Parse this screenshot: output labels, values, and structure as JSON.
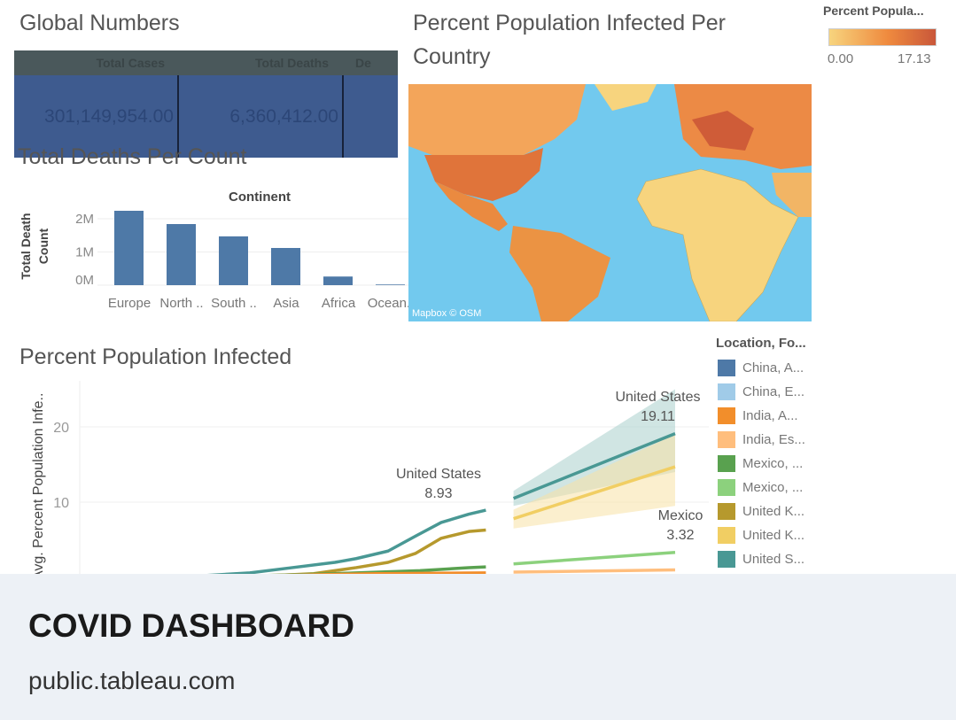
{
  "global_numbers": {
    "title": "Global Numbers",
    "columns": [
      "Total Cases",
      "Total Deaths",
      "De"
    ],
    "values": [
      "301,149,954.00",
      "6,360,412.00",
      ""
    ]
  },
  "deaths_chart": {
    "title": "Total Deaths Per Count"
  },
  "map": {
    "title_line1": "Percent Population Infected Per",
    "title_line2": "Country",
    "attribution": "Mapbox © OSM",
    "legend_title": "Percent Popula...",
    "legend_min": "0.00",
    "legend_max": "17.13",
    "colors": {
      "ocean": "#72c9ee",
      "low": "#f7d47e",
      "mid": "#ef8a3e",
      "high": "#c9573a"
    }
  },
  "infected_chart": {
    "title": "Percent Population Infected",
    "legend_title": "Location, Fo...",
    "legend": [
      {
        "label": "China, A...",
        "color": "#4e79a7"
      },
      {
        "label": "China, E...",
        "color": "#a0cbe8"
      },
      {
        "label": "India, A...",
        "color": "#f28e2b"
      },
      {
        "label": "India, Es...",
        "color": "#ffbe7d"
      },
      {
        "label": "Mexico, ...",
        "color": "#59a14f"
      },
      {
        "label": "Mexico, ...",
        "color": "#8cd17d"
      },
      {
        "label": "United K...",
        "color": "#b6992d"
      },
      {
        "label": "United K...",
        "color": "#f1ce63"
      },
      {
        "label": "United S...",
        "color": "#499894"
      }
    ],
    "annotations": [
      {
        "name": "United States",
        "value": "8.93"
      },
      {
        "name": "United States",
        "value": "19.11"
      },
      {
        "name": "Mexico",
        "value": "3.32"
      }
    ]
  },
  "card": {
    "title": "COVID DASHBOARD",
    "domain": "public.tableau.com"
  },
  "chart_data": [
    {
      "type": "bar",
      "title": "Total Deaths Per Count",
      "xlabel": "Continent",
      "ylabel": "Total Death Count",
      "categories": [
        "Europe",
        "North ..",
        "South ..",
        "Asia",
        "Africa",
        "Ocean.."
      ],
      "values": [
        2240000,
        1840000,
        1470000,
        1120000,
        260000,
        20000
      ],
      "yticks": [
        "0M",
        "1M",
        "2M"
      ],
      "ylim": [
        0,
        2400000
      ],
      "color": "#4e79a7"
    },
    {
      "type": "line",
      "title": "Percent Population Infected",
      "ylabel": "Avg. Percent Population Infe..",
      "yticks": [
        10,
        20
      ],
      "ylim": [
        0,
        25
      ],
      "xlim": [
        0,
        28
      ],
      "series": [
        {
          "name": "United States, Actual",
          "color": "#499894",
          "points": [
            [
              0,
              0
            ],
            [
              5,
              0.1
            ],
            [
              8,
              0.6
            ],
            [
              10,
              1.3
            ],
            [
              12,
              2
            ],
            [
              13,
              2.5
            ],
            [
              14.5,
              3.5
            ],
            [
              15.8,
              5.5
            ],
            [
              17,
              7.3
            ],
            [
              18.3,
              8.4
            ],
            [
              19.1,
              8.93
            ]
          ]
        },
        {
          "name": "United Kingdom, Actual",
          "color": "#b6992d",
          "points": [
            [
              0,
              0
            ],
            [
              8,
              0.1
            ],
            [
              11,
              0.5
            ],
            [
              13,
              1.3
            ],
            [
              14.5,
              2
            ],
            [
              15.8,
              3.2
            ],
            [
              17,
              5.2
            ],
            [
              18.3,
              6.1
            ],
            [
              19.1,
              6.3
            ]
          ]
        },
        {
          "name": "Mexico, Actual",
          "color": "#59a14f",
          "points": [
            [
              0,
              0
            ],
            [
              8,
              0.2
            ],
            [
              12,
              0.5
            ],
            [
              16,
              0.9
            ],
            [
              18.3,
              1.3
            ],
            [
              19.1,
              1.4
            ]
          ]
        },
        {
          "name": "India, Actual",
          "color": "#f28e2b",
          "points": [
            [
              0,
              0
            ],
            [
              10,
              0.3
            ],
            [
              14,
              0.5
            ],
            [
              19.1,
              0.6
            ]
          ]
        },
        {
          "name": "United States, Estimate",
          "color": "#499894",
          "band_color": "#a9cfcc",
          "points": [
            [
              20.4,
              10.5
            ],
            [
              28,
              19.11
            ]
          ],
          "band": [
            [
              20.4,
              9.5,
              11.5
            ],
            [
              28,
              14,
              25
            ]
          ]
        },
        {
          "name": "United Kingdom, Estimate",
          "color": "#f1ce63",
          "band_color": "#f7e2a6",
          "points": [
            [
              20.4,
              7.8
            ],
            [
              28,
              14.7
            ]
          ],
          "band": [
            [
              20.4,
              6.5,
              9
            ],
            [
              28,
              9.5,
              19
            ]
          ]
        },
        {
          "name": "Mexico, Estimate",
          "color": "#8cd17d",
          "points": [
            [
              20.4,
              1.8
            ],
            [
              28,
              3.32
            ]
          ]
        },
        {
          "name": "India, Estimate",
          "color": "#ffbe7d",
          "points": [
            [
              20.4,
              0.7
            ],
            [
              28,
              1.0
            ]
          ]
        }
      ]
    }
  ]
}
